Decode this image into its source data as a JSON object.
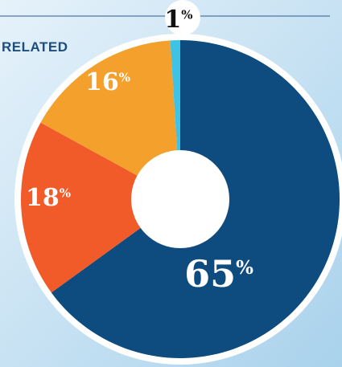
{
  "chart_data": {
    "type": "pie",
    "title": "RELATED",
    "categories": [
      null,
      null,
      null,
      null
    ],
    "values": [
      65,
      18,
      16,
      1
    ],
    "unit": "%",
    "colors": [
      "#0e4b7e",
      "#f15b29",
      "#f4a02d",
      "#3ec3e4"
    ]
  }
}
